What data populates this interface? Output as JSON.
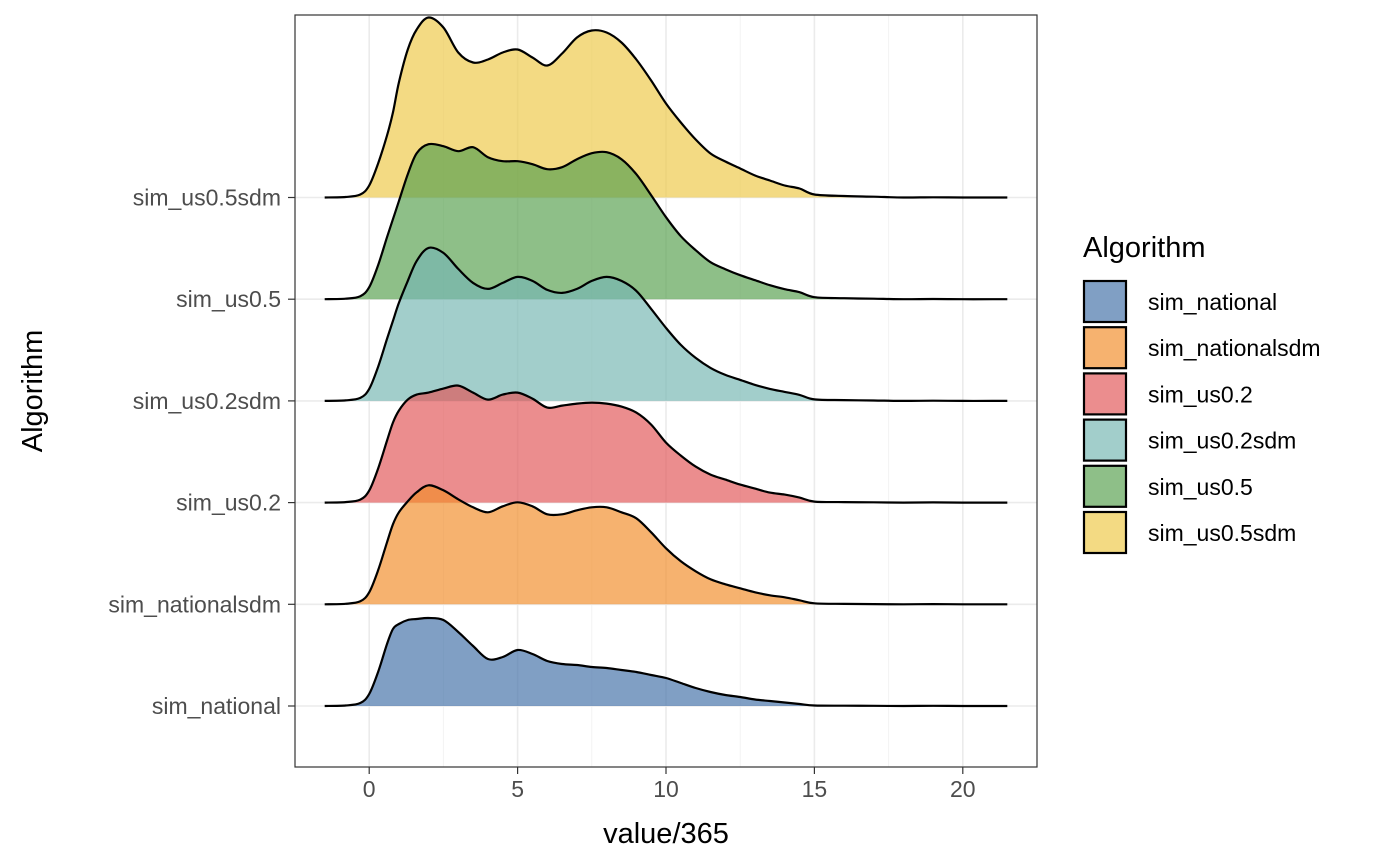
{
  "chart_data": {
    "type": "ridgeline",
    "xlabel": "value/365",
    "ylabel": "Algorithm",
    "xlim": [
      -2.5,
      22.5
    ],
    "x_ticks": [
      0,
      5,
      10,
      15,
      20
    ],
    "grid": true,
    "legend": {
      "title": "Algorithm",
      "placement": "right",
      "entries": [
        "sim_national",
        "sim_nationalsdm",
        "sim_us0.2",
        "sim_us0.2sdm",
        "sim_us0.5",
        "sim_us0.5sdm"
      ]
    },
    "categories": [
      "sim_national",
      "sim_nationalsdm",
      "sim_us0.2",
      "sim_us0.2sdm",
      "sim_us0.5",
      "sim_us0.5sdm"
    ],
    "series": [
      {
        "name": "sim_national",
        "color": "#4472a8",
        "x": [
          -1.5,
          -0.8,
          -0.3,
          0,
          0.3,
          0.6,
          0.8,
          1,
          1.3,
          1.6,
          2,
          2.5,
          3,
          3.5,
          4,
          4.5,
          5,
          5.5,
          6,
          6.5,
          7,
          7.5,
          8,
          8.5,
          9,
          9.5,
          10,
          10.5,
          11,
          11.5,
          12,
          12.5,
          13,
          13.5,
          14,
          14.5,
          15,
          16,
          17,
          18,
          19,
          20,
          21,
          21.5
        ],
        "y": [
          0,
          0.005,
          0.03,
          0.12,
          0.34,
          0.62,
          0.77,
          0.82,
          0.86,
          0.87,
          0.88,
          0.86,
          0.74,
          0.6,
          0.47,
          0.49,
          0.56,
          0.52,
          0.45,
          0.42,
          0.41,
          0.39,
          0.38,
          0.36,
          0.34,
          0.31,
          0.28,
          0.23,
          0.18,
          0.14,
          0.11,
          0.09,
          0.065,
          0.05,
          0.035,
          0.02,
          0.005,
          0.003,
          0.002,
          0,
          0.002,
          0,
          0,
          0
        ]
      },
      {
        "name": "sim_nationalsdm",
        "color": "#f28e2b",
        "x": [
          -1.5,
          -0.8,
          -0.3,
          0,
          0.3,
          0.6,
          0.8,
          1,
          1.3,
          1.6,
          2,
          2.5,
          3,
          3.5,
          4,
          4.5,
          5,
          5.5,
          6,
          6.5,
          7,
          7.5,
          8,
          8.5,
          9,
          9.5,
          10,
          10.5,
          11,
          11.5,
          12,
          12.5,
          13,
          13.5,
          14,
          14.5,
          15,
          16,
          17,
          18,
          19,
          20,
          21,
          21.5
        ],
        "y": [
          0,
          0.005,
          0.03,
          0.12,
          0.34,
          0.62,
          0.8,
          0.92,
          1.03,
          1.12,
          1.19,
          1.14,
          1.05,
          0.97,
          0.92,
          0.98,
          1.02,
          0.98,
          0.9,
          0.9,
          0.94,
          0.97,
          0.97,
          0.92,
          0.86,
          0.72,
          0.56,
          0.43,
          0.33,
          0.25,
          0.2,
          0.16,
          0.12,
          0.09,
          0.07,
          0.04,
          0.01,
          0.004,
          0.002,
          0,
          0.002,
          0,
          0,
          0
        ]
      },
      {
        "name": "sim_us0.2",
        "color": "#e15759",
        "x": [
          -1.5,
          -0.8,
          -0.3,
          0,
          0.3,
          0.6,
          0.8,
          1,
          1.3,
          1.6,
          2,
          2.5,
          3,
          3.5,
          4,
          4.5,
          5,
          5.5,
          6,
          6.5,
          7,
          7.5,
          8,
          8.5,
          9,
          9.5,
          10,
          10.5,
          11,
          11.5,
          12,
          12.5,
          13,
          13.5,
          14,
          14.5,
          15,
          16,
          17,
          18,
          19,
          20,
          21,
          21.5
        ],
        "y": [
          0,
          0.005,
          0.03,
          0.12,
          0.34,
          0.62,
          0.8,
          0.92,
          1.03,
          1.08,
          1.1,
          1.14,
          1.17,
          1.1,
          1.03,
          1.08,
          1.1,
          1.04,
          0.95,
          0.97,
          0.99,
          1.0,
          0.99,
          0.96,
          0.9,
          0.78,
          0.6,
          0.47,
          0.36,
          0.28,
          0.23,
          0.18,
          0.14,
          0.1,
          0.08,
          0.05,
          0.01,
          0.005,
          0.003,
          0,
          0.002,
          0,
          0,
          0
        ]
      },
      {
        "name": "sim_us0.2sdm",
        "color": "#76b7b2",
        "x": [
          -1.5,
          -0.8,
          -0.3,
          0,
          0.3,
          0.6,
          0.8,
          1,
          1.3,
          1.6,
          2,
          2.5,
          3,
          3.5,
          4,
          4.5,
          5,
          5.5,
          6,
          6.5,
          7,
          7.5,
          8,
          8.5,
          9,
          9.5,
          10,
          10.5,
          11,
          11.5,
          12,
          12.5,
          13,
          13.5,
          14,
          14.5,
          15,
          16,
          17,
          18,
          19,
          20,
          21,
          21.5
        ],
        "y": [
          0,
          0.005,
          0.03,
          0.12,
          0.34,
          0.62,
          0.8,
          0.98,
          1.2,
          1.4,
          1.53,
          1.48,
          1.32,
          1.18,
          1.12,
          1.18,
          1.24,
          1.2,
          1.11,
          1.08,
          1.12,
          1.2,
          1.24,
          1.2,
          1.1,
          0.92,
          0.73,
          0.56,
          0.43,
          0.33,
          0.26,
          0.21,
          0.16,
          0.12,
          0.09,
          0.06,
          0.015,
          0.008,
          0.004,
          0,
          0.002,
          0,
          0,
          0
        ]
      },
      {
        "name": "sim_us0.5",
        "color": "#59a14f",
        "x": [
          -1.5,
          -0.8,
          -0.3,
          0,
          0.3,
          0.6,
          0.8,
          1,
          1.3,
          1.6,
          2,
          2.5,
          3,
          3.5,
          4,
          4.5,
          5,
          5.5,
          6,
          6.5,
          7,
          7.5,
          8,
          8.5,
          9,
          9.5,
          10,
          10.5,
          11,
          11.5,
          12,
          12.5,
          13,
          13.5,
          14,
          14.5,
          15,
          16,
          17,
          18,
          19,
          20,
          21,
          21.5
        ],
        "y": [
          0,
          0.005,
          0.03,
          0.12,
          0.34,
          0.62,
          0.8,
          0.98,
          1.25,
          1.46,
          1.55,
          1.53,
          1.48,
          1.52,
          1.42,
          1.38,
          1.38,
          1.35,
          1.3,
          1.32,
          1.4,
          1.46,
          1.47,
          1.4,
          1.25,
          1.04,
          0.82,
          0.63,
          0.49,
          0.37,
          0.3,
          0.24,
          0.19,
          0.14,
          0.1,
          0.07,
          0.02,
          0.01,
          0.005,
          0,
          0.002,
          0,
          0,
          0
        ]
      },
      {
        "name": "sim_us0.5sdm",
        "color": "#edc948",
        "x": [
          -1.5,
          -0.8,
          -0.3,
          0,
          0.3,
          0.6,
          0.8,
          1,
          1.3,
          1.6,
          2,
          2.5,
          3,
          3.5,
          4,
          4.5,
          5,
          5.5,
          6,
          6.5,
          7,
          7.5,
          8,
          8.5,
          9,
          9.5,
          10,
          10.5,
          11,
          11.5,
          12,
          12.5,
          13,
          13.5,
          14,
          14.5,
          15,
          16,
          17,
          18,
          19,
          20,
          21,
          21.5
        ],
        "y": [
          0,
          0.005,
          0.03,
          0.12,
          0.34,
          0.62,
          0.85,
          1.15,
          1.48,
          1.68,
          1.8,
          1.7,
          1.45,
          1.35,
          1.38,
          1.45,
          1.48,
          1.4,
          1.32,
          1.44,
          1.6,
          1.67,
          1.65,
          1.55,
          1.38,
          1.17,
          0.94,
          0.75,
          0.58,
          0.44,
          0.36,
          0.29,
          0.22,
          0.17,
          0.12,
          0.09,
          0.03,
          0.015,
          0.008,
          0,
          0.002,
          0,
          0,
          0
        ]
      }
    ]
  }
}
